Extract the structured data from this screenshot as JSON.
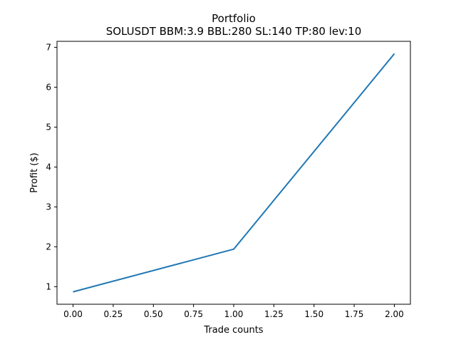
{
  "chart_data": {
    "type": "line",
    "title": "Portfolio",
    "subtitle": "SOLUSDT BBM:3.9 BBL:280 SL:140 TP:80 lev:10",
    "xlabel": "Trade counts",
    "ylabel": "Profit ($)",
    "xlim": [
      -0.1,
      2.1
    ],
    "ylim": [
      0.56,
      7.15
    ],
    "xticks": [
      0.0,
      0.25,
      0.5,
      0.75,
      1.0,
      1.25,
      1.5,
      1.75,
      2.0
    ],
    "xtick_labels": [
      "0.00",
      "0.25",
      "0.50",
      "0.75",
      "1.00",
      "1.25",
      "1.50",
      "1.75",
      "2.00"
    ],
    "yticks": [
      1,
      2,
      3,
      4,
      5,
      6,
      7
    ],
    "ytick_labels": [
      "1",
      "2",
      "3",
      "4",
      "5",
      "6",
      "7"
    ],
    "grid": false,
    "series": [
      {
        "color": "#1f77b4",
        "x": [
          0,
          1,
          2
        ],
        "y": [
          0.87,
          1.94,
          6.84
        ]
      }
    ]
  }
}
